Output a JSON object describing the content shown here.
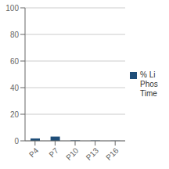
{
  "chart_data": {
    "type": "bar",
    "categories": [
      "P4",
      "P7",
      "P10",
      "P13",
      "P16"
    ],
    "series": [
      {
        "name": "% Li\nPhos\nTime",
        "color": "#1f4e79",
        "values": [
          1.8,
          3.2,
          0.3,
          0.2,
          0.1
        ]
      }
    ],
    "ylim": [
      0,
      100
    ],
    "yticks": [
      0,
      20,
      40,
      60,
      80,
      100
    ],
    "grid": true,
    "legend": "right"
  }
}
